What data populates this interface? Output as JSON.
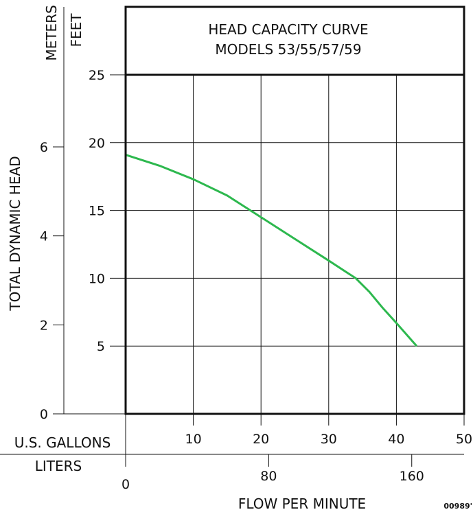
{
  "chart_data": {
    "type": "line",
    "title": [
      "HEAD CAPACITY CURVE",
      "MODELS 53/55/57/59"
    ],
    "ylabel": "TOTAL DYNAMIC HEAD",
    "xlabel": "FLOW PER MINUTE",
    "y_unit_feet": "FEET",
    "y_unit_meters": "METERS",
    "x_unit_gallons": "U.S. GALLONS",
    "x_unit_liters": "LITERS",
    "ylim_feet": [
      0,
      25
    ],
    "xlim_gallons": [
      0,
      50
    ],
    "feet_ticks": [
      "5",
      "10",
      "15",
      "20",
      "25"
    ],
    "meter_ticks": [
      {
        "value": 0,
        "label": "0"
      },
      {
        "value": 2,
        "label": "2"
      },
      {
        "value": 4,
        "label": "4"
      },
      {
        "value": 6,
        "label": "6"
      }
    ],
    "gallon_ticks": [
      "10",
      "20",
      "30",
      "40",
      "50"
    ],
    "liter_ticks": [
      {
        "value": 0,
        "label": "0"
      },
      {
        "value": 80,
        "label": "80"
      },
      {
        "value": 160,
        "label": "160"
      }
    ],
    "series": [
      {
        "color": "#2db84e",
        "x": [
          0,
          5,
          10,
          15,
          20,
          25,
          30,
          34,
          36,
          38,
          40,
          43
        ],
        "y": [
          19.1,
          18.3,
          17.3,
          16.1,
          14.5,
          12.9,
          11.3,
          10.0,
          9.0,
          7.8,
          6.7,
          5.0
        ]
      }
    ],
    "grid": true,
    "legend": "none",
    "figure_code": "00989'"
  }
}
